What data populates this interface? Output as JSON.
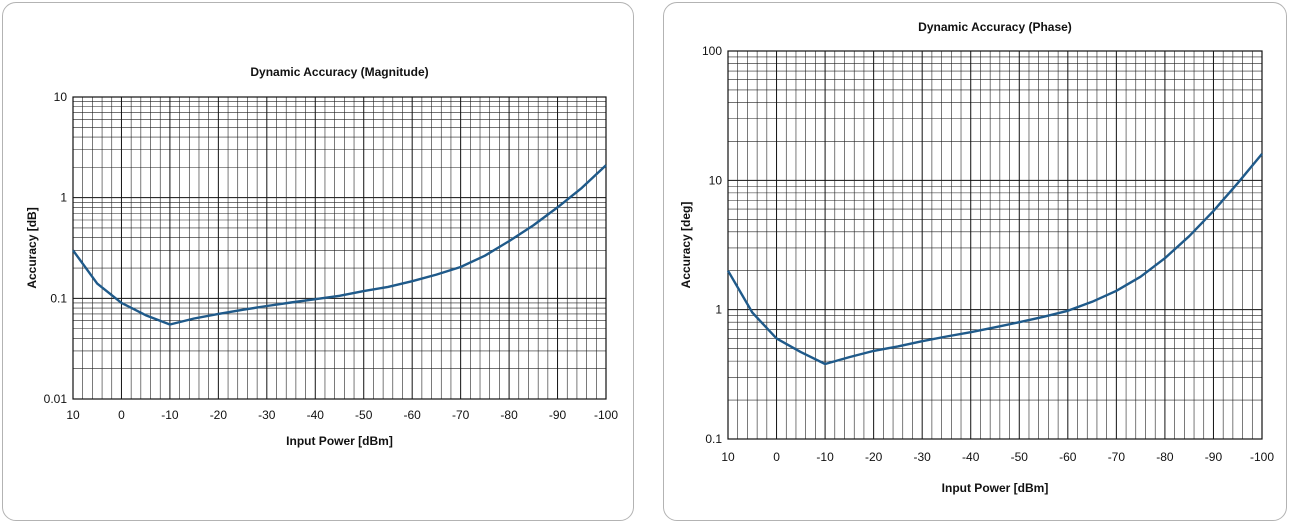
{
  "chart_data": [
    {
      "type": "line",
      "title": "Dynamic Accuracy (Magnitude)",
      "xlabel": "Input Power [dBm]",
      "ylabel": "Accuracy [dB]",
      "xlim": [
        10,
        -100
      ],
      "ylim": [
        0.01,
        10
      ],
      "yscale": "log",
      "grid": true,
      "x_tick_labels": [
        "10",
        "0",
        "-10",
        "-20",
        "-30",
        "-40",
        "-50",
        "-60",
        "-70",
        "-80",
        "-90",
        "-100"
      ],
      "y_tick_labels": [
        "10",
        "1",
        "0.1",
        "0.01"
      ],
      "y_tick_values": [
        10,
        1,
        0.1,
        0.01
      ],
      "color": "#1f5a8a",
      "x": [
        10,
        5,
        0,
        -5,
        -10,
        -15,
        -20,
        -25,
        -30,
        -35,
        -40,
        -45,
        -50,
        -55,
        -60,
        -65,
        -70,
        -75,
        -80,
        -85,
        -90,
        -95,
        -100
      ],
      "y": [
        0.3,
        0.14,
        0.09,
        0.068,
        0.055,
        0.063,
        0.07,
        0.077,
        0.084,
        0.091,
        0.098,
        0.106,
        0.118,
        0.13,
        0.148,
        0.172,
        0.205,
        0.265,
        0.37,
        0.53,
        0.8,
        1.25,
        2.1
      ]
    },
    {
      "type": "line",
      "title": "Dynamic Accuracy (Phase)",
      "xlabel": "Input Power [dBm]",
      "ylabel": "Accuracy [deg]",
      "xlim": [
        10,
        -100
      ],
      "ylim": [
        0.1,
        100
      ],
      "yscale": "log",
      "grid": true,
      "x_tick_labels": [
        "10",
        "0",
        "-10",
        "-20",
        "-30",
        "-40",
        "-50",
        "-60",
        "-70",
        "-80",
        "-90",
        "-100"
      ],
      "y_tick_labels": [
        "100",
        "10",
        "1",
        "0.1"
      ],
      "y_tick_values": [
        100,
        10,
        1,
        0.1
      ],
      "color": "#1f5a8a",
      "x": [
        10,
        5,
        0,
        -5,
        -10,
        -15,
        -20,
        -25,
        -30,
        -35,
        -40,
        -45,
        -50,
        -55,
        -60,
        -65,
        -70,
        -75,
        -80,
        -85,
        -90,
        -95,
        -100
      ],
      "y": [
        2.0,
        0.95,
        0.6,
        0.47,
        0.38,
        0.43,
        0.48,
        0.52,
        0.57,
        0.62,
        0.67,
        0.73,
        0.8,
        0.88,
        0.98,
        1.15,
        1.4,
        1.8,
        2.5,
        3.7,
        5.8,
        9.5,
        16.0
      ]
    }
  ]
}
